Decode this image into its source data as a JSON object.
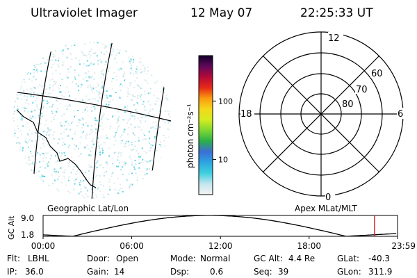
{
  "header": {
    "instrument": "Ultraviolet Imager",
    "date": "12 May 07",
    "time": "22:25:33 UT"
  },
  "colorbar": {
    "unit_label": "photon cm⁻²s⁻¹",
    "ticks": [
      "100",
      "10"
    ],
    "tick_values": [
      100,
      10
    ],
    "min": 2.5,
    "max": 600,
    "scale": "log",
    "stops": [
      "#f4f4f4",
      "#c4e6ee",
      "#3fd0de",
      "#2da6e0",
      "#3c6ed6",
      "#2ab04a",
      "#7ed632",
      "#d4ec20",
      "#f4d81a",
      "#fa9c10",
      "#e62a18",
      "#b40a38",
      "#60085a",
      "#10002a"
    ]
  },
  "left_map": {
    "projection_label": "Geographic Lat/Lon"
  },
  "polar_plot": {
    "coord_label": "Apex MLat/MLT",
    "mlt_labels": {
      "top": "12",
      "left": "18",
      "right": "6",
      "bottom": "0"
    },
    "lat_labels": [
      "60",
      "70",
      "80"
    ]
  },
  "altitude_plot": {
    "y_label": "GC Alt",
    "y_ticks": [
      "9.0",
      "1.8"
    ],
    "y_tick_values": [
      9.0,
      1.8
    ],
    "x_ticks": [
      "00:00",
      "06:00",
      "12:00",
      "18:00",
      "23:59"
    ],
    "x_tick_values": [
      0,
      6,
      12,
      18,
      23.983
    ],
    "current_time_hours": 22.4258,
    "line_color": "#000000",
    "marker_color": "#d62020"
  },
  "status": {
    "filter": {
      "label": "Flt:",
      "value": "LBHL"
    },
    "ip": {
      "label": "IP:",
      "value": "36.0"
    },
    "door": {
      "label": "Door:",
      "value": "Open"
    },
    "gain": {
      "label": "Gain:",
      "value": "14"
    },
    "mode": {
      "label": "Mode:",
      "value": "Normal"
    },
    "dsp": {
      "label": "Dsp:",
      "value": "0.6"
    },
    "gc_alt": {
      "label": "GC Alt:",
      "value": "4.4 Re"
    },
    "seq": {
      "label": "Seq:",
      "value": "39"
    },
    "glat": {
      "label": "GLat:",
      "value": "-40.3"
    },
    "glon": {
      "label": "GLon:",
      "value": "311.9"
    }
  }
}
